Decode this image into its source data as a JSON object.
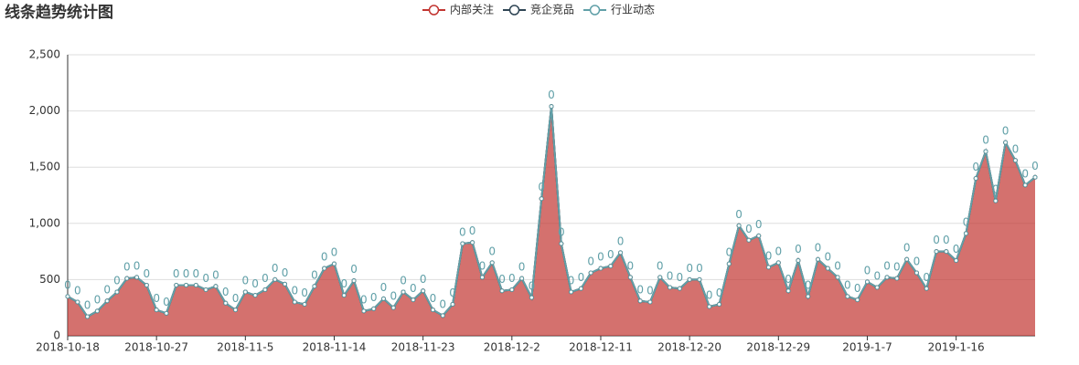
{
  "chart_data": {
    "type": "line",
    "title": "线条趋势统计图",
    "stacked": true,
    "area": true,
    "categories": [
      "2018-10-18",
      null,
      null,
      null,
      null,
      null,
      null,
      null,
      null,
      "2018-10-27",
      null,
      null,
      null,
      null,
      null,
      null,
      null,
      null,
      "2018-11-5",
      null,
      null,
      null,
      null,
      null,
      null,
      null,
      null,
      "2018-11-14",
      null,
      null,
      null,
      null,
      null,
      null,
      null,
      null,
      "2018-11-23",
      null,
      null,
      null,
      null,
      null,
      null,
      null,
      null,
      "2018-12-2",
      null,
      null,
      null,
      null,
      null,
      null,
      null,
      null,
      "2018-12-11",
      null,
      null,
      null,
      null,
      null,
      null,
      null,
      null,
      "2018-12-20",
      null,
      null,
      null,
      null,
      null,
      null,
      null,
      null,
      "2018-12-29",
      null,
      null,
      null,
      null,
      null,
      null,
      null,
      null,
      "2019-1-7",
      null,
      null,
      null,
      null,
      null,
      null,
      null,
      null,
      "2019-1-16",
      null,
      null,
      null,
      null,
      null,
      null,
      null,
      null
    ],
    "series": [
      {
        "name": "内部关注",
        "color": "#c23531",
        "values": [
          350,
          300,
          170,
          220,
          310,
          390,
          510,
          520,
          450,
          230,
          200,
          450,
          450,
          450,
          410,
          440,
          290,
          230,
          390,
          360,
          410,
          500,
          460,
          300,
          280,
          440,
          600,
          640,
          360,
          490,
          220,
          240,
          330,
          250,
          390,
          320,
          400,
          230,
          180,
          280,
          820,
          830,
          520,
          650,
          400,
          410,
          510,
          340,
          1220,
          2040,
          820,
          390,
          420,
          560,
          600,
          620,
          740,
          520,
          310,
          300,
          520,
          430,
          420,
          500,
          500,
          260,
          280,
          640,
          980,
          850,
          890,
          610,
          650,
          400,
          670,
          350,
          680,
          600,
          520,
          350,
          320,
          480,
          430,
          520,
          510,
          680,
          560,
          420,
          750,
          750,
          670,
          910,
          1400,
          1640,
          1200,
          1720,
          1560,
          1340,
          1410
        ]
      },
      {
        "name": "竞企竞品",
        "color": "#2f4554",
        "values": [
          0,
          0,
          0,
          0,
          0,
          0,
          0,
          0,
          0,
          0,
          0,
          0,
          0,
          0,
          0,
          0,
          0,
          0,
          0,
          0,
          0,
          0,
          0,
          0,
          0,
          0,
          0,
          0,
          0,
          0,
          0,
          0,
          0,
          0,
          0,
          0,
          0,
          0,
          0,
          0,
          0,
          0,
          0,
          0,
          0,
          0,
          0,
          0,
          0,
          0,
          0,
          0,
          0,
          0,
          0,
          0,
          0,
          0,
          0,
          0,
          0,
          0,
          0,
          0,
          0,
          0,
          0,
          0,
          0,
          0,
          0,
          0,
          0,
          0,
          0,
          0,
          0,
          0,
          0,
          0,
          0,
          0,
          0,
          0,
          0,
          0,
          0,
          0,
          0,
          0,
          0,
          0,
          0,
          0,
          0,
          0,
          0,
          0,
          0
        ]
      },
      {
        "name": "行业动态",
        "color": "#61a0a8",
        "show_labels": true,
        "values": [
          0,
          0,
          0,
          0,
          0,
          0,
          0,
          0,
          0,
          0,
          0,
          0,
          0,
          0,
          0,
          0,
          0,
          0,
          0,
          0,
          0,
          0,
          0,
          0,
          0,
          0,
          0,
          0,
          0,
          0,
          0,
          0,
          0,
          0,
          0,
          0,
          0,
          0,
          0,
          0,
          0,
          0,
          0,
          0,
          0,
          0,
          0,
          0,
          0,
          0,
          0,
          0,
          0,
          0,
          0,
          0,
          0,
          0,
          0,
          0,
          0,
          0,
          0,
          0,
          0,
          0,
          0,
          0,
          0,
          0,
          0,
          0,
          0,
          0,
          0,
          0,
          0,
          0,
          0,
          0,
          0,
          0,
          0,
          0,
          0,
          0,
          0,
          0,
          0,
          0,
          0,
          0,
          0,
          0,
          0,
          0,
          0,
          0,
          0
        ]
      }
    ],
    "ylim": [
      0,
      2500
    ],
    "yticks": [
      0,
      500,
      {
        "value": 1000,
        "label": "1,000"
      },
      {
        "value": 1500,
        "label": "1,500"
      },
      {
        "value": 2000,
        "label": "2,000"
      },
      {
        "value": 2500,
        "label": "2,500"
      }
    ],
    "grid": true
  }
}
